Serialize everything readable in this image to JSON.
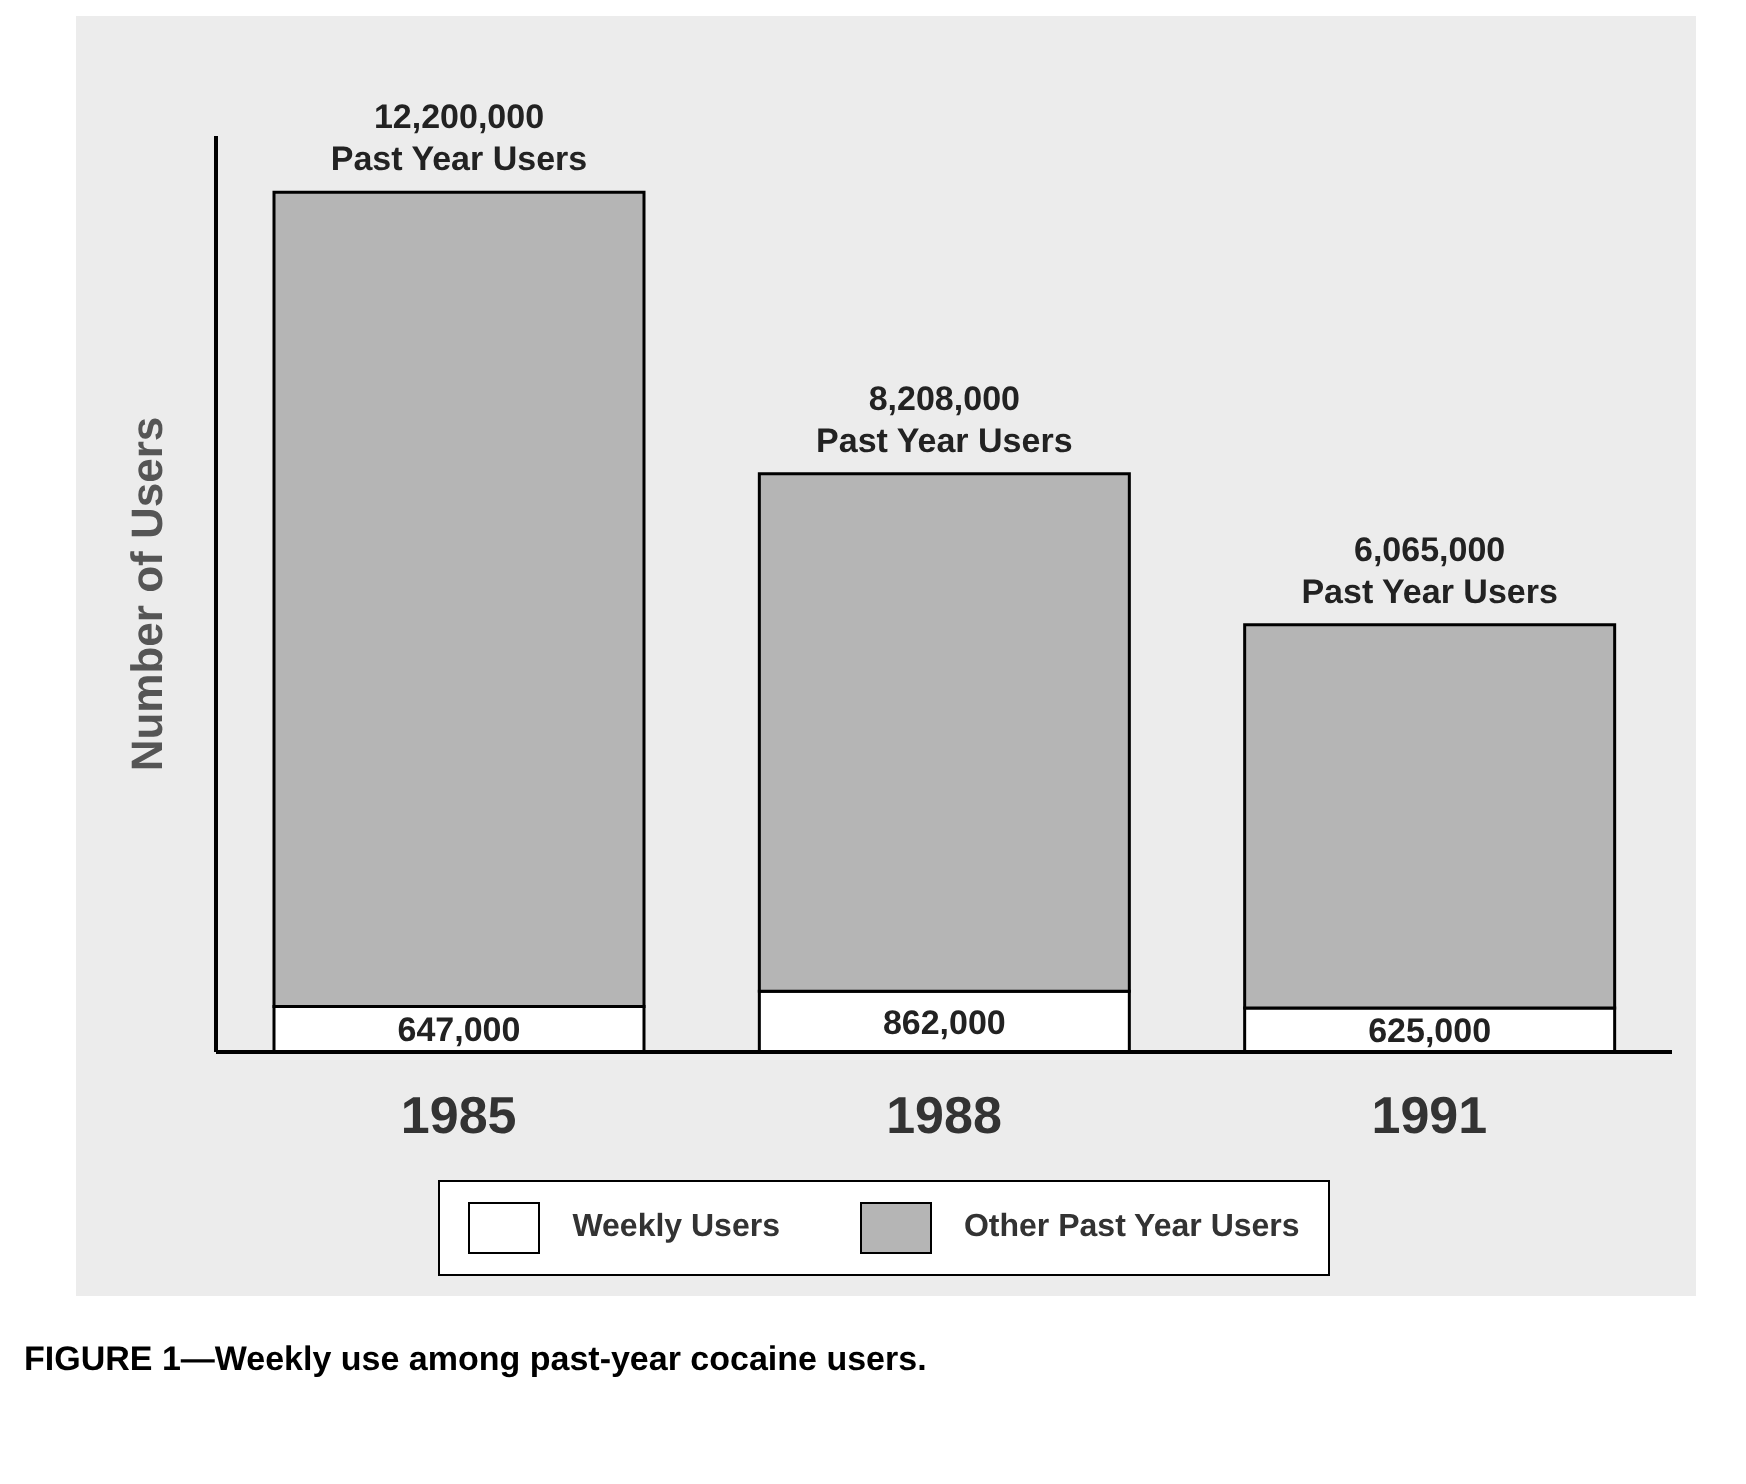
{
  "chart_data": {
    "type": "bar",
    "stacked": true,
    "ylabel": "Number of Users",
    "categories": [
      "1985",
      "1988",
      "1991"
    ],
    "series": [
      {
        "name": "Weekly Users",
        "color": "#ffffff",
        "values": [
          647000,
          862000,
          625000
        ],
        "value_labels": [
          "647,000",
          "862,000",
          "625,000"
        ]
      },
      {
        "name": "Other Past Year Users",
        "color": "#b5b5b5",
        "values": [
          11553000,
          7346000,
          5440000
        ]
      }
    ],
    "totals": [
      "12,200,000 Past Year Users",
      "8,208,000 Past Year Users",
      "6,065,000 Past Year Users"
    ],
    "ylim": [
      0,
      13000000
    ],
    "tick_labels": "x",
    "legend": "bottom",
    "annotations": [
      "FIGURE 1—Weekly use among past-year cocaine users."
    ]
  }
}
